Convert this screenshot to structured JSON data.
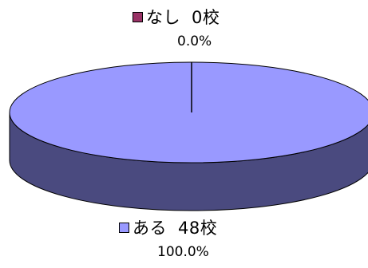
{
  "chart_data": {
    "type": "pie",
    "style": "3d",
    "slices": [
      {
        "category": "なし",
        "count": "0校",
        "percent": "0.0%",
        "value": 0,
        "color": "#993366"
      },
      {
        "category": "ある",
        "count": "48校",
        "percent": "100.0%",
        "value": 48,
        "color": "#9999ff"
      }
    ],
    "side_color": "#4a4a7f",
    "legend": "none",
    "data_labels": "category-value-percent"
  }
}
